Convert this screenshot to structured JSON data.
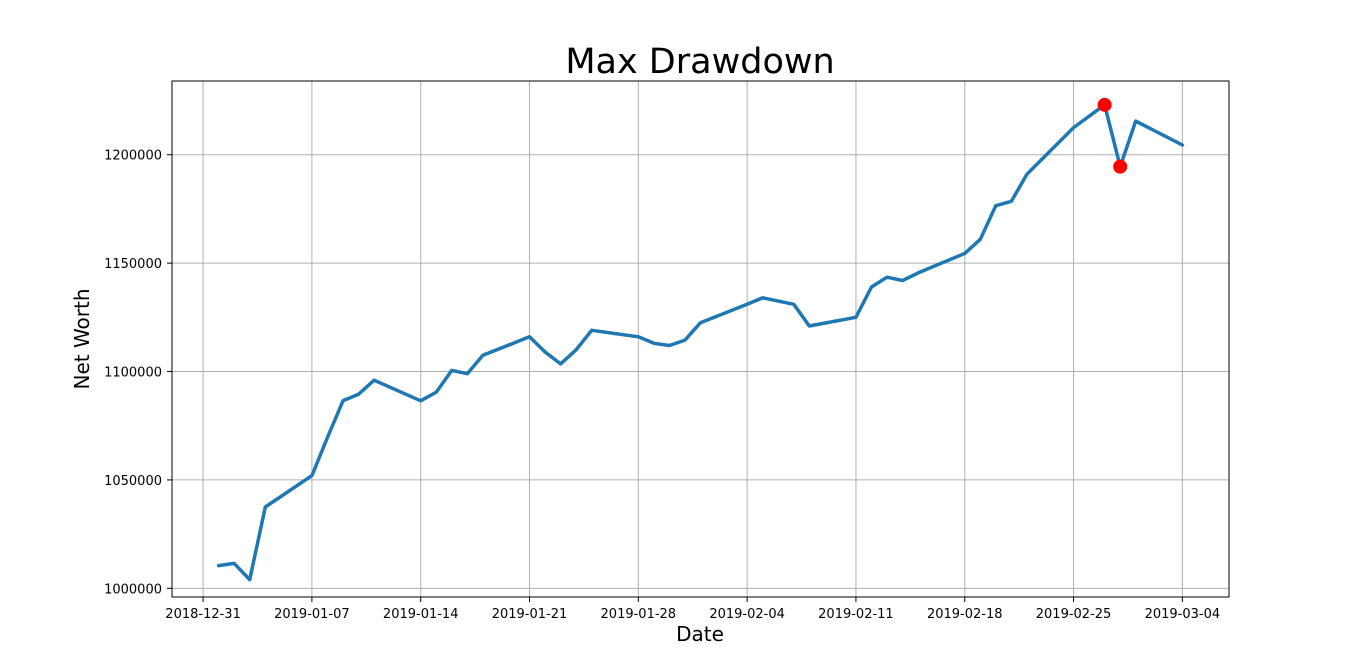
{
  "chart_data": {
    "type": "line",
    "title": "Max Drawdown",
    "xlabel": "Date",
    "ylabel": "Net Worth",
    "x_axis_type": "date",
    "xlim": [
      "2018-12-29",
      "2019-03-07"
    ],
    "ylim": [
      996000,
      1234000
    ],
    "grid": true,
    "x_ticks": [
      "2018-12-31",
      "2019-01-07",
      "2019-01-14",
      "2019-01-21",
      "2019-01-28",
      "2019-02-04",
      "2019-02-11",
      "2019-02-18",
      "2019-02-25",
      "2019-03-04"
    ],
    "y_ticks": [
      1000000,
      1050000,
      1100000,
      1150000,
      1200000
    ],
    "colors": {
      "line": "#1f77b4",
      "marker": "#ff0000"
    },
    "series": [
      {
        "points": [
          [
            "2019-01-01",
            1010500
          ],
          [
            "2019-01-02",
            1011500
          ],
          [
            "2019-01-03",
            1004000
          ],
          [
            "2019-01-04",
            1037500
          ],
          [
            "2019-01-07",
            1052000
          ],
          [
            "2019-01-08",
            1069500
          ],
          [
            "2019-01-09",
            1086500
          ],
          [
            "2019-01-10",
            1089500
          ],
          [
            "2019-01-11",
            1096000
          ],
          [
            "2019-01-14",
            1086500
          ],
          [
            "2019-01-15",
            1090500
          ],
          [
            "2019-01-16",
            1100500
          ],
          [
            "2019-01-17",
            1099000
          ],
          [
            "2019-01-18",
            1107500
          ],
          [
            "2019-01-21",
            1116000
          ],
          [
            "2019-01-22",
            1109000
          ],
          [
            "2019-01-23",
            1103500
          ],
          [
            "2019-01-24",
            1110000
          ],
          [
            "2019-01-25",
            1119000
          ],
          [
            "2019-01-28",
            1116000
          ],
          [
            "2019-01-29",
            1113000
          ],
          [
            "2019-01-30",
            1112000
          ],
          [
            "2019-01-31",
            1114500
          ],
          [
            "2019-02-01",
            1122500
          ],
          [
            "2019-02-04",
            1131000
          ],
          [
            "2019-02-05",
            1134000
          ],
          [
            "2019-02-07",
            1131000
          ],
          [
            "2019-02-08",
            1121000
          ],
          [
            "2019-02-11",
            1125000
          ],
          [
            "2019-02-12",
            1139000
          ],
          [
            "2019-02-13",
            1143500
          ],
          [
            "2019-02-14",
            1142000
          ],
          [
            "2019-02-15",
            1145500
          ],
          [
            "2019-02-18",
            1154500
          ],
          [
            "2019-02-19",
            1161000
          ],
          [
            "2019-02-20",
            1176500
          ],
          [
            "2019-02-21",
            1178500
          ],
          [
            "2019-02-22",
            1191000
          ],
          [
            "2019-02-25",
            1212500
          ],
          [
            "2019-02-27",
            1223000
          ],
          [
            "2019-02-28",
            1194500
          ],
          [
            "2019-03-01",
            1215500
          ],
          [
            "2019-03-04",
            1204500
          ]
        ]
      }
    ],
    "markers": [
      {
        "x": "2019-02-27",
        "y": 1223000
      },
      {
        "x": "2019-02-28",
        "y": 1194500
      }
    ]
  }
}
